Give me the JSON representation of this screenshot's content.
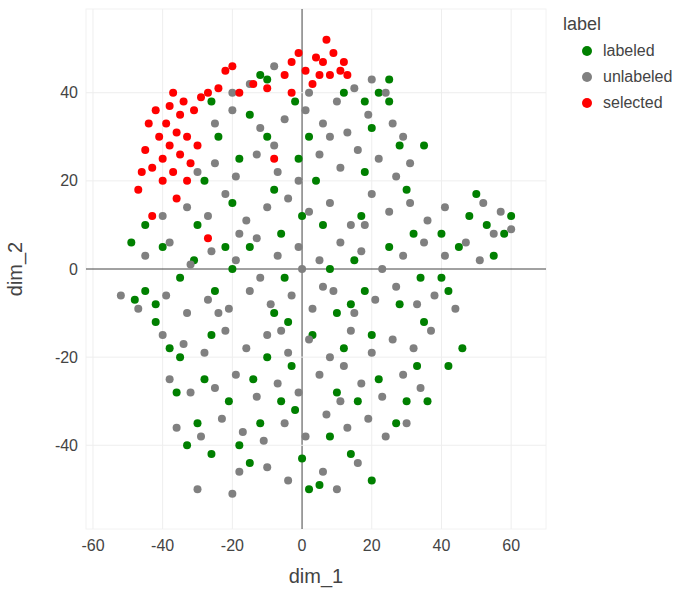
{
  "chart_data": {
    "type": "scatter",
    "xlabel": "dim_1",
    "ylabel": "dim_2",
    "legend_title": "label",
    "legend": "top-right",
    "grid": true,
    "marker": "circle",
    "xlim": [
      -62,
      70
    ],
    "ylim": [
      -59,
      59
    ],
    "xticks": [
      -60,
      -40,
      -20,
      0,
      20,
      40,
      60
    ],
    "yticks": [
      -40,
      -20,
      0,
      20,
      40
    ],
    "series": [
      {
        "name": "labeled",
        "color": "#008000",
        "x": [
          -48,
          -45,
          -42,
          -38,
          -36,
          -33,
          -30,
          -28,
          -26,
          -25,
          -22,
          -20,
          -18,
          -15,
          -12,
          -10,
          -8,
          -6,
          -5,
          -4,
          -3,
          -2,
          0,
          2,
          5,
          8,
          10,
          12,
          14,
          15,
          17,
          18,
          20,
          22,
          25,
          28,
          30,
          32,
          34,
          35,
          33,
          30,
          27,
          22,
          20,
          18,
          40,
          42,
          45,
          48,
          50,
          53,
          55,
          58,
          60,
          46,
          40,
          -49,
          -45,
          -40,
          -35,
          -30,
          -28,
          -24,
          -21,
          -18,
          -15,
          -12,
          -10,
          -8,
          -6,
          -2,
          2,
          4,
          6,
          8,
          10,
          12,
          18,
          25,
          28,
          -15,
          -14,
          0,
          -20,
          -35,
          -26,
          14,
          36,
          42,
          35,
          25,
          -10,
          -42,
          -31,
          3,
          -1,
          16,
          20,
          -26
        ],
        "values": [
          -7,
          -5,
          -8,
          -18,
          -28,
          -40,
          -35,
          -25,
          -15,
          -5,
          5,
          15,
          25,
          35,
          44,
          30,
          18,
          8,
          -2,
          -12,
          -22,
          -32,
          -43,
          -50,
          -49,
          -38,
          -28,
          -18,
          -8,
          2,
          12,
          22,
          32,
          40,
          38,
          28,
          18,
          8,
          -2,
          -12,
          -22,
          -30,
          -35,
          -25,
          -15,
          -5,
          8,
          -5,
          5,
          12,
          17,
          10,
          3,
          8,
          12,
          -18,
          -2,
          6,
          10,
          5,
          -2,
          10,
          20,
          30,
          -30,
          -40,
          -44,
          -35,
          -20,
          -10,
          -30,
          38,
          30,
          20,
          10,
          0,
          -10,
          40,
          38,
          5,
          -8,
          5,
          -25,
          12,
          0,
          -20,
          -42,
          -42,
          -30,
          -22,
          28,
          43,
          43,
          -12,
          2,
          -15,
          25,
          -30,
          -48,
          38
        ]
      },
      {
        "name": "unlabeled",
        "color": "#808080",
        "x": [
          -15,
          -8,
          2,
          10,
          15,
          20,
          24,
          -20,
          -25,
          -20,
          -12,
          -5,
          1,
          6,
          13,
          19,
          26,
          29,
          -30,
          -25,
          -19,
          -13,
          -7,
          -1,
          5,
          11,
          16,
          22,
          27,
          31,
          -40,
          -33,
          -27,
          -22,
          -16,
          -10,
          -4,
          2,
          8,
          14,
          20,
          25,
          31,
          36,
          41,
          52,
          57,
          -45,
          -38,
          -32,
          -26,
          -19,
          -13,
          -7,
          -1,
          5,
          11,
          17,
          23,
          29,
          35,
          41,
          47,
          51,
          55,
          60,
          -52,
          -47,
          -39,
          -33,
          -27,
          -21,
          -15,
          -9,
          -3,
          3,
          9,
          15,
          21,
          27,
          33,
          38,
          44,
          -40,
          -34,
          -28,
          -22,
          -16,
          -10,
          -4,
          2,
          8,
          14,
          20,
          26,
          32,
          37,
          -38,
          -32,
          -25,
          -19,
          -13,
          -7,
          -1,
          5,
          11,
          17,
          23,
          29,
          34,
          -36,
          -29,
          -23,
          -17,
          -11,
          -5,
          1,
          7,
          13,
          19,
          24,
          30,
          -30,
          -20,
          -18,
          -10,
          -4,
          6,
          10,
          16,
          -24,
          -12,
          -6,
          6,
          12,
          0,
          -18,
          18,
          -8,
          8
        ],
        "values": [
          42,
          46,
          40,
          38,
          41,
          43,
          40,
          40,
          33,
          36,
          32,
          34,
          36,
          33,
          31,
          35,
          33,
          30,
          22,
          24,
          21,
          26,
          22,
          20,
          26,
          23,
          27,
          25,
          21,
          24,
          12,
          14,
          12,
          17,
          11,
          14,
          16,
          13,
          15,
          10,
          17,
          13,
          15,
          11,
          14,
          15,
          13,
          3,
          6,
          1,
          4,
          2,
          7,
          3,
          5,
          2,
          6,
          4,
          0,
          3,
          6,
          3,
          6,
          2,
          8,
          9,
          -6,
          -9,
          -6,
          -10,
          -7,
          -9,
          -5,
          -8,
          -6,
          -9,
          -5,
          -10,
          -7,
          -4,
          -8,
          -6,
          -9,
          -15,
          -17,
          -19,
          -14,
          -18,
          -15,
          -19,
          -16,
          -20,
          -14,
          -19,
          -16,
          -18,
          -14,
          -25,
          -28,
          -27,
          -24,
          -29,
          -26,
          -28,
          -24,
          -30,
          -26,
          -29,
          -24,
          -27,
          -36,
          -38,
          -34,
          -37,
          -39,
          -35,
          -38,
          -33,
          -36,
          -34,
          -38,
          -35,
          -50,
          -51,
          -46,
          -45,
          -48,
          -46,
          -50,
          -44,
          -10,
          -2,
          -14,
          -4,
          -22,
          0,
          8,
          10,
          28,
          30
        ]
      },
      {
        "name": "selected",
        "color": "#ff0000",
        "x": [
          -47,
          -46,
          -45,
          -44,
          -43,
          -42,
          -41,
          -40,
          -40,
          -39,
          -38,
          -38,
          -37,
          -36,
          -36,
          -35,
          -35,
          -34,
          -33,
          -33,
          -32,
          -31,
          -30,
          -29,
          -27,
          -24,
          -22,
          -20,
          -18,
          -14,
          -10,
          -8,
          -5,
          -3,
          -1,
          1,
          3,
          4,
          6,
          7,
          8,
          9,
          11,
          12,
          13,
          -27,
          -43,
          -37,
          -3,
          5
        ],
        "values": [
          18,
          22,
          27,
          33,
          12,
          36,
          30,
          25,
          20,
          33,
          37,
          28,
          22,
          31,
          16,
          35,
          26,
          38,
          20,
          30,
          24,
          36,
          28,
          39,
          40,
          41,
          45,
          46,
          40,
          42,
          41,
          25,
          44,
          47,
          49,
          45,
          42,
          48,
          47,
          52,
          44,
          49,
          45,
          47,
          44,
          7,
          23,
          40,
          40,
          44
        ]
      }
    ]
  }
}
